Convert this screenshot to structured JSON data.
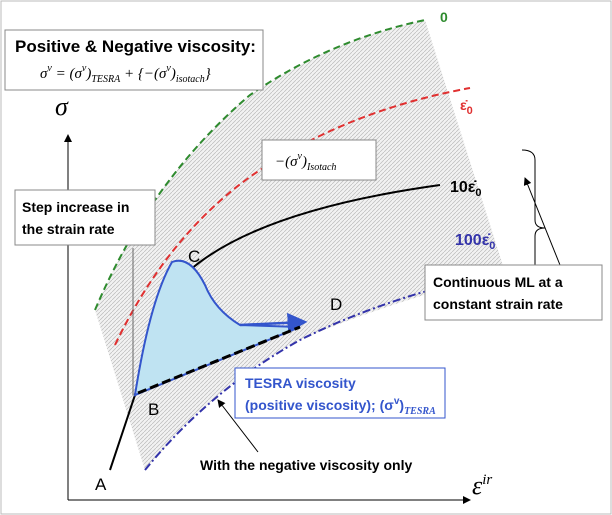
{
  "title": "Positive & Negative viscosity:",
  "formula": [
    "σ",
    "v",
    " = (σ",
    "v",
    ")",
    "TESRA",
    " + {−(σ",
    "v",
    ")",
    "isotach",
    "}"
  ],
  "axes": {
    "y": "σ",
    "x": [
      "ε",
      "ir"
    ]
  },
  "curves": [
    {
      "parts": [
        "0"
      ],
      "color": "#2e8b2e"
    },
    {
      "parts": [
        "ε̇",
        "0"
      ],
      "color": "#e03030"
    },
    {
      "parts": [
        "10ε̇",
        "0"
      ],
      "color": "#000000"
    },
    {
      "parts": [
        "100ε̇",
        "0"
      ],
      "color": "#3333aa"
    }
  ],
  "isotach_label": [
    "−(σ",
    "v",
    ")",
    "Isotach"
  ],
  "step_box": [
    "Step increase in",
    "the strain rate"
  ],
  "points": [
    "A",
    "B",
    "C",
    "D"
  ],
  "continuous_box": [
    "Continuous ML at a",
    "constant strain rate"
  ],
  "tesra_box": [
    "TESRA viscosity",
    "(positive viscosity); (σ",
    "v",
    ")",
    "TESRA"
  ],
  "negative_note": "With the negative viscosity only"
}
